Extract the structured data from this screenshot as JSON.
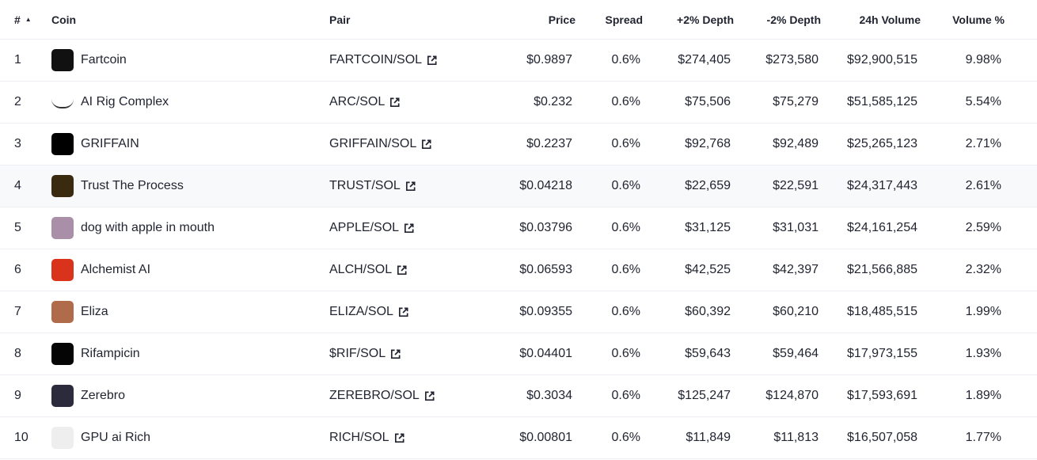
{
  "table": {
    "header": [
      "#",
      "Coin",
      "Pair",
      "Price",
      "Spread",
      "+2% Depth",
      "-2% Depth",
      "24h Volume",
      "Volume %"
    ],
    "rows": [
      [
        "1",
        "Fartcoin",
        "FARTCOIN/SOL",
        "$0.9897",
        "0.6%",
        "$274,405",
        "$273,580",
        "$92,900,515",
        "9.98%"
      ],
      [
        "2",
        "AI Rig Complex",
        "ARC/SOL",
        "$0.232",
        "0.6%",
        "$75,506",
        "$75,279",
        "$51,585,125",
        "5.54%"
      ],
      [
        "3",
        "GRIFFAIN",
        "GRIFFAIN/SOL",
        "$0.2237",
        "0.6%",
        "$92,768",
        "$92,489",
        "$25,265,123",
        "2.71%"
      ],
      [
        "4",
        "Trust The Process",
        "TRUST/SOL",
        "$0.04218",
        "0.6%",
        "$22,659",
        "$22,591",
        "$24,317,443",
        "2.61%"
      ],
      [
        "5",
        "dog with apple in mouth",
        "APPLE/SOL",
        "$0.03796",
        "0.6%",
        "$31,125",
        "$31,031",
        "$24,161,254",
        "2.59%"
      ],
      [
        "6",
        "Alchemist AI",
        "ALCH/SOL",
        "$0.06593",
        "0.6%",
        "$42,525",
        "$42,397",
        "$21,566,885",
        "2.32%"
      ],
      [
        "7",
        "Eliza",
        "ELIZA/SOL",
        "$0.09355",
        "0.6%",
        "$60,392",
        "$60,210",
        "$18,485,515",
        "1.99%"
      ],
      [
        "8",
        "Rifampicin",
        "$RIF/SOL",
        "$0.04401",
        "0.6%",
        "$59,643",
        "$59,464",
        "$17,973,155",
        "1.93%"
      ],
      [
        "9",
        "Zerebro",
        "ZEREBRO/SOL",
        "$0.3034",
        "0.6%",
        "$125,247",
        "$124,870",
        "$17,593,691",
        "1.89%"
      ],
      [
        "10",
        "GPU ai Rich",
        "RICH/SOL",
        "$0.00801",
        "0.6%",
        "$11,849",
        "$11,813",
        "$16,507,058",
        "1.77%"
      ]
    ]
  }
}
